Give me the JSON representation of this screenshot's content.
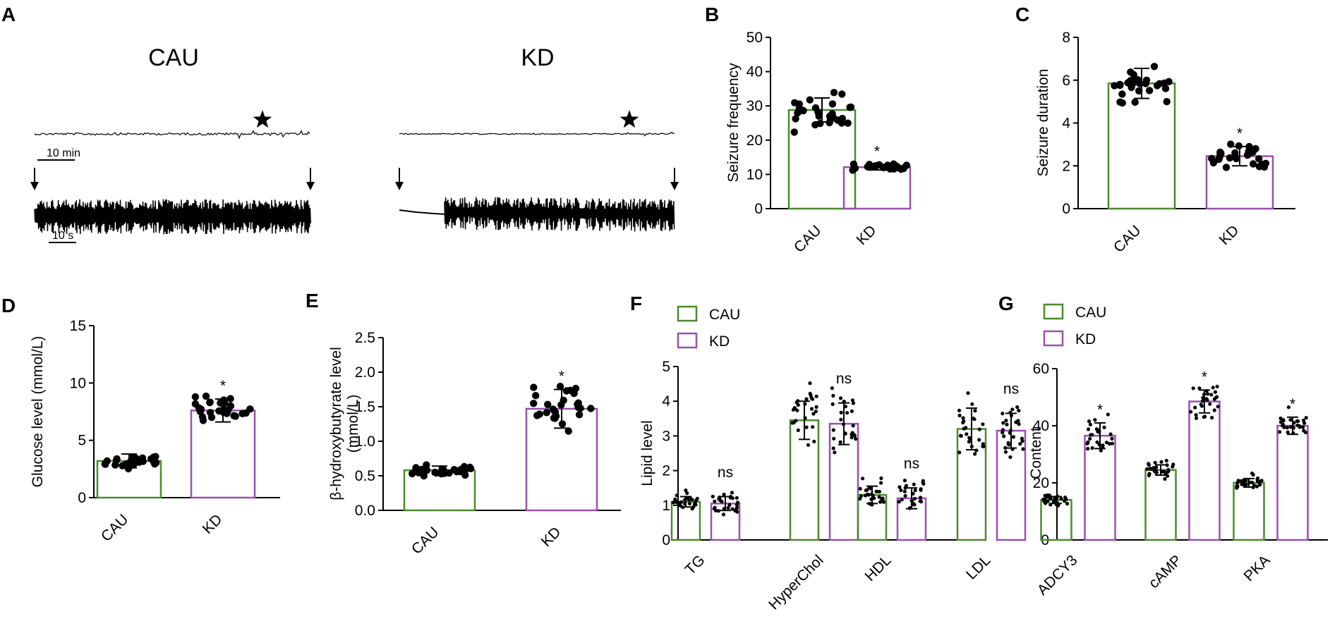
{
  "colors": {
    "cau": "#4b8a2e",
    "kd": "#9b4fb0",
    "ink": "#000000"
  },
  "panel_a": {
    "label": "A",
    "groups": [
      "CAU",
      "KD"
    ],
    "scale_long": "10 min",
    "scale_short": "10 s",
    "marker_icon": "star-icon",
    "arrow_icon": "down-arrow-icon"
  },
  "chart_data": [
    {
      "panel": "B",
      "type": "bar",
      "categories": [
        "CAU",
        "KD"
      ],
      "values": [
        28.8,
        12.1
      ],
      "errors": [
        3.5,
        0.8
      ],
      "n_points": 28,
      "spread": [
        5.0,
        0.9
      ],
      "ylabel": "Seizure frequency",
      "ylim": [
        0,
        50
      ],
      "yticks": [
        0,
        10,
        20,
        30,
        40,
        50
      ],
      "sig": [
        "",
        "*"
      ]
    },
    {
      "panel": "C",
      "type": "bar",
      "categories": [
        "CAU",
        "KD"
      ],
      "values": [
        5.85,
        2.45
      ],
      "errors": [
        0.7,
        0.45
      ],
      "n_points": 28,
      "spread": [
        0.75,
        0.45
      ],
      "ylabel": "Seizure duration",
      "ylim": [
        0,
        8
      ],
      "yticks": [
        0,
        2,
        4,
        6,
        8
      ],
      "sig": [
        "",
        "*"
      ]
    },
    {
      "panel": "D",
      "type": "bar",
      "categories": [
        "CAU",
        "KD"
      ],
      "values": [
        3.2,
        7.6
      ],
      "errors": [
        0.6,
        1.0
      ],
      "n_points": 28,
      "spread": [
        0.6,
        1.0
      ],
      "ylabel": "Glucose level (mmol/L)",
      "ylim": [
        0,
        15
      ],
      "yticks": [
        0,
        5,
        10,
        15
      ],
      "sig": [
        "",
        "*"
      ]
    },
    {
      "panel": "E",
      "type": "bar",
      "categories": [
        "CAU",
        "KD"
      ],
      "values": [
        0.58,
        1.47
      ],
      "errors": [
        0.06,
        0.28
      ],
      "n_points": 28,
      "spread": [
        0.07,
        0.28
      ],
      "ylabel": "β-hydroxybutyrate level (mmol/L)",
      "ylim": [
        0,
        2.5
      ],
      "yticks": [
        0.0,
        0.5,
        1.0,
        1.5,
        2.0,
        2.5
      ],
      "ytick_labels": [
        "0.0",
        "0.5",
        "1.0",
        "1.5",
        "2.0",
        "2.5"
      ],
      "sig": [
        "",
        "*"
      ]
    },
    {
      "panel": "F",
      "type": "bar",
      "categories": [
        "TG",
        "HyperChol",
        "HDL",
        "LDL"
      ],
      "series": [
        {
          "name": "CAU",
          "values": [
            1.1,
            3.45,
            1.3,
            3.2
          ],
          "errors": [
            0.15,
            0.55,
            0.25,
            0.6
          ]
        },
        {
          "name": "KD",
          "values": [
            1.05,
            3.35,
            1.2,
            3.15
          ],
          "errors": [
            0.2,
            0.6,
            0.3,
            0.5
          ]
        }
      ],
      "n_points": 28,
      "ylabel": "Lipid level",
      "ylim": [
        0,
        5
      ],
      "yticks": [
        0,
        1,
        2,
        3,
        4,
        5
      ],
      "sig": [
        "ns",
        "ns",
        "ns",
        "ns"
      ],
      "legend": [
        "CAU",
        "KD"
      ]
    },
    {
      "panel": "G",
      "type": "bar",
      "categories": [
        "ADCY3",
        "cAMP",
        "PKA"
      ],
      "series": [
        {
          "name": "CAU",
          "values": [
            14,
            24.5,
            20
          ],
          "errors": [
            1.2,
            1.8,
            1.5
          ]
        },
        {
          "name": "KD",
          "values": [
            36.5,
            48.5,
            40
          ],
          "errors": [
            4.5,
            4.0,
            3.0
          ]
        }
      ],
      "n_points": 28,
      "ylabel": "Content",
      "ylim": [
        0,
        60
      ],
      "yticks": [
        0,
        20,
        40,
        60
      ],
      "sig": [
        "*",
        "*",
        "*"
      ],
      "legend": [
        "CAU",
        "KD"
      ]
    }
  ]
}
